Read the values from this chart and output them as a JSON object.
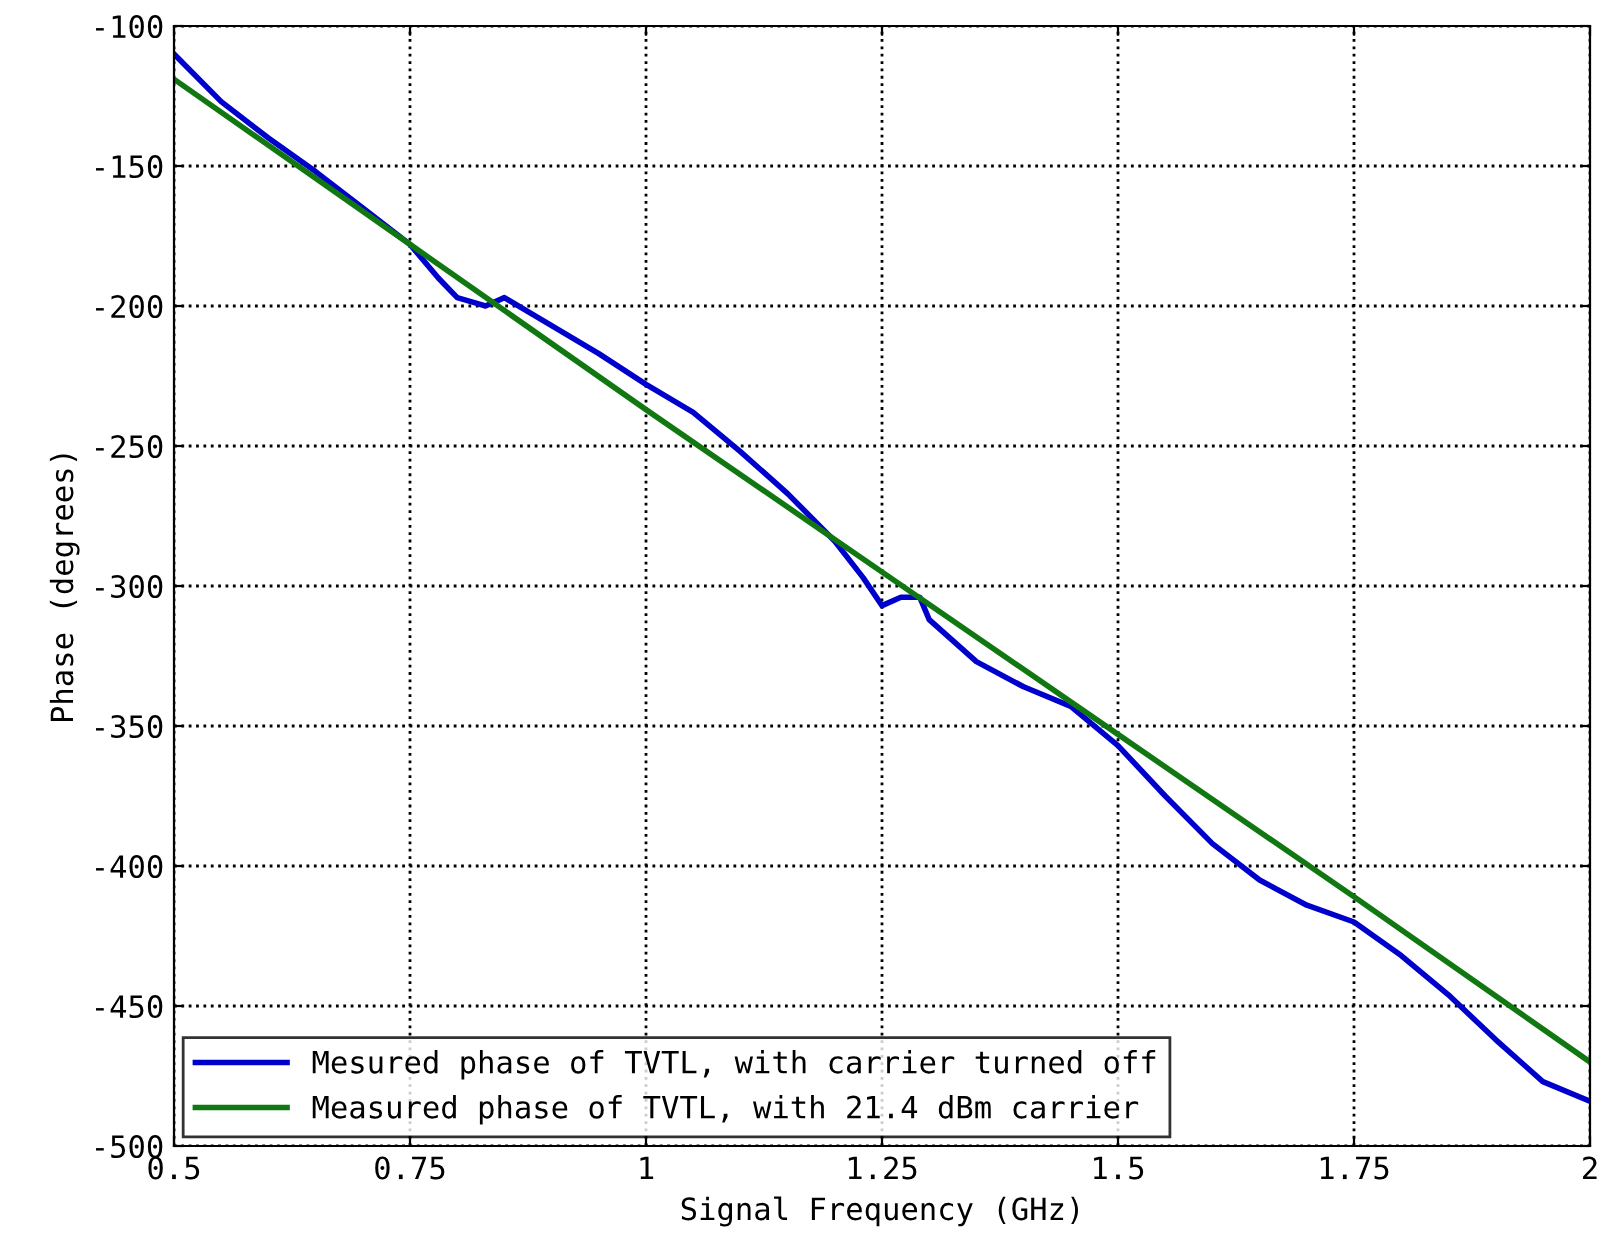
{
  "chart_data": {
    "type": "line",
    "xlabel": "Signal Frequency (GHz)",
    "ylabel": "Phase (degrees)",
    "xlim": [
      0.5,
      2
    ],
    "xticks": [
      0.5,
      0.75,
      1,
      1.25,
      1.5,
      1.75,
      2
    ],
    "ylim": [
      -500,
      -100
    ],
    "yticks": [
      -500,
      -450,
      -400,
      -350,
      -300,
      -250,
      -200,
      -150,
      -100
    ],
    "grid": true,
    "legend": "bottom left",
    "series": [
      {
        "name": "Mesured phase of TVTL, with carrier turned off",
        "color": "#0000cc",
        "x": [
          0.5,
          0.55,
          0.6,
          0.65,
          0.7,
          0.75,
          0.78,
          0.8,
          0.82,
          0.83,
          0.85,
          0.9,
          0.95,
          1.0,
          1.05,
          1.1,
          1.15,
          1.2,
          1.23,
          1.25,
          1.27,
          1.29,
          1.3,
          1.35,
          1.4,
          1.45,
          1.5,
          1.55,
          1.6,
          1.65,
          1.7,
          1.75,
          1.8,
          1.85,
          1.9,
          1.95,
          2.0
        ],
        "values": [
          -110,
          -127,
          -140,
          -152,
          -165,
          -178,
          -190,
          -197,
          -199,
          -200,
          -197,
          -207,
          -217,
          -228,
          -238,
          -252,
          -267,
          -284,
          -297,
          -307,
          -304,
          -304,
          -312,
          -327,
          -336,
          -343,
          -357,
          -375,
          -392,
          -405,
          -414,
          -420,
          -432,
          -446,
          -462,
          -477,
          -484
        ]
      },
      {
        "name": "Measured phase of TVTL, with 21.4 dBm carrier",
        "color": "#117711",
        "x": [
          0.5,
          0.75,
          1.0,
          1.25,
          1.5,
          1.75,
          2.0
        ],
        "values": [
          -119,
          -178,
          -237,
          -295,
          -353,
          -411,
          -470
        ]
      }
    ]
  }
}
